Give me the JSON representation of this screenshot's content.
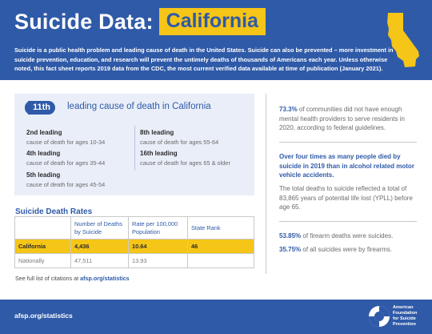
{
  "header": {
    "title": "Suicide Data:",
    "state": "California",
    "intro": "Suicide is a public health problem and leading cause of death in the United States. Suicide can also be prevented – more investment in suicide prevention, education, and research will prevent the untimely deaths of thousands of Americans each year. Unless otherwise noted, this fact sheet reports 2019 data from the CDC, the most current verified data available at time of publication (January 2021)."
  },
  "rank": {
    "badge": "11th",
    "headline": "leading cause of death in California",
    "items": [
      {
        "label": "2nd leading",
        "sub": "cause of death for ages 10-34"
      },
      {
        "label": "4th leading",
        "sub": "cause of death for ages 35-44"
      },
      {
        "label": "5th leading",
        "sub": "cause of death for ages 45-54"
      },
      {
        "label": "8th leading",
        "sub": "cause of death for ages 55-64"
      },
      {
        "label": "16th leading",
        "sub": "cause of death for ages 65 & older"
      }
    ]
  },
  "rates": {
    "title": "Suicide Death Rates",
    "headers": [
      "",
      "Number of Deaths by Suicide",
      "Rate per 100,000 Population",
      "State Rank"
    ],
    "rows": [
      {
        "name": "California",
        "deaths": "4,436",
        "rate": "10.64",
        "rank": "46"
      },
      {
        "name": "Nationally",
        "deaths": "47,511",
        "rate": "13.93",
        "rank": ""
      }
    ]
  },
  "citation": {
    "prefix": "See full list of citations at ",
    "link": "afsp.org/statistics"
  },
  "facts": {
    "f1_pct": "73.3%",
    "f1_text": " of communities did not have enough mental health providers to serve residents in 2020, according to federal guidelines.",
    "f2": "Over four times as many people died by suicide in 2019 than in alcohol related motor vehicle accidents.",
    "f3": "The total deaths to suicide reflected a total of 83,865 years of potential life lost (YPLL) before age 65.",
    "f4_pct": "53.85%",
    "f4_text": " of firearm deaths were suicides.",
    "f5_pct": "35.75%",
    "f5_text": " of all suicides were by firearms."
  },
  "footer": {
    "url": "afsp.org/statistics",
    "org_line1": "American",
    "org_line2": "Foundation",
    "org_line3": "for Suicide",
    "org_line4": "Prevention"
  },
  "colors": {
    "brand_blue": "#2f5aa8",
    "accent_yellow": "#f5c518",
    "panel_blue": "#e9eef8"
  }
}
